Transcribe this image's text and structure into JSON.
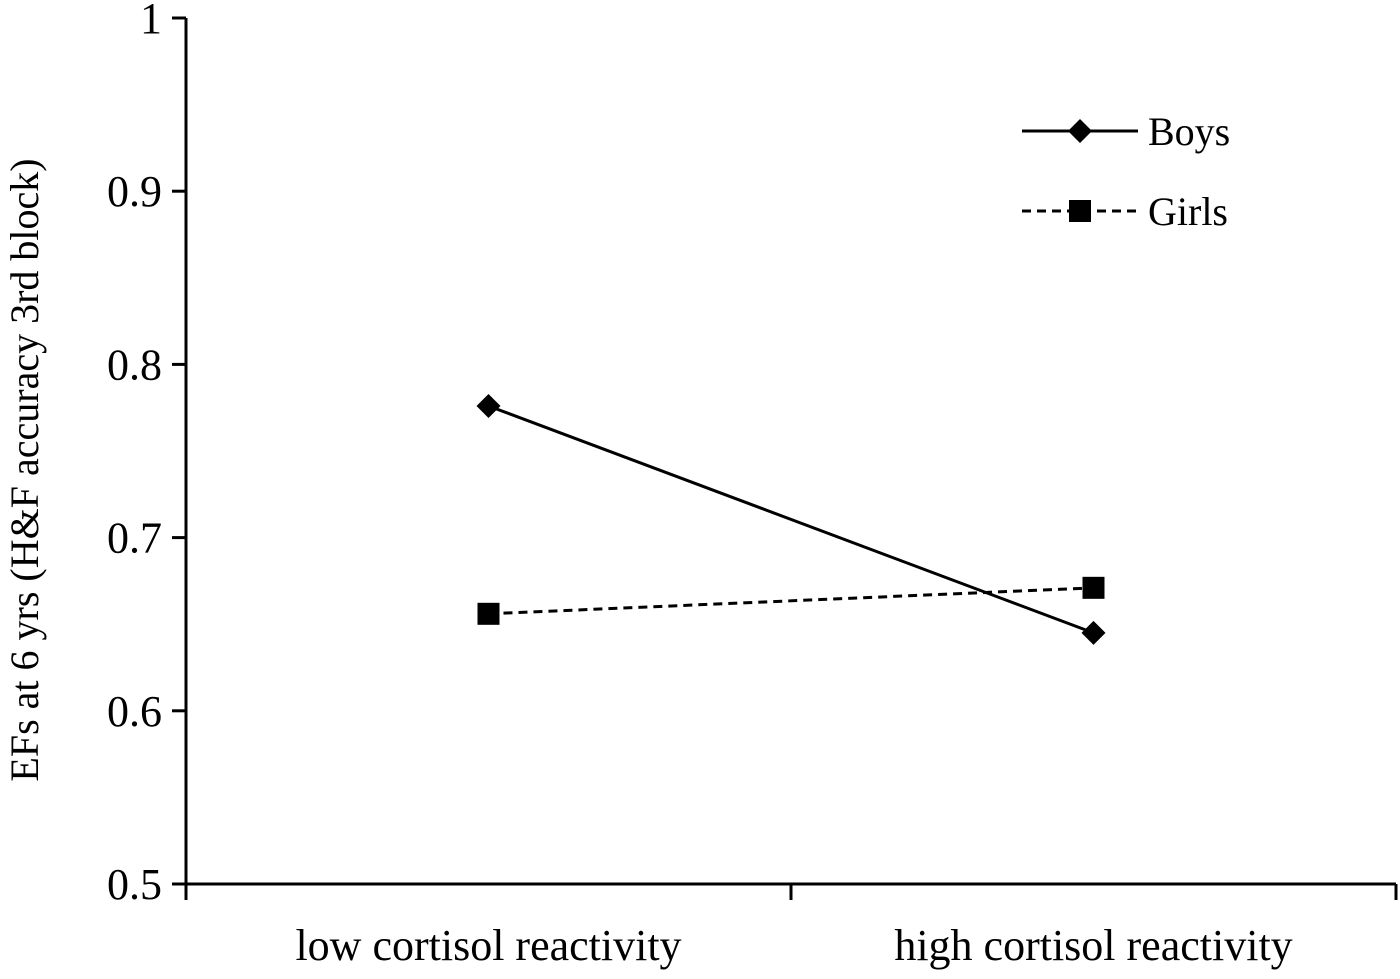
{
  "chart_data": {
    "type": "line",
    "title": "",
    "xlabel": "",
    "ylabel": "EFs at 6 yrs (H&F accuracy 3rd block)",
    "categories": [
      "low cortisol reactivity",
      "high cortisol reactivity"
    ],
    "ylim": [
      0.5,
      1
    ],
    "yticks": [
      {
        "value": 0.5,
        "label": "0.5"
      },
      {
        "value": 0.6,
        "label": "0.6"
      },
      {
        "value": 0.7,
        "label": "0.7"
      },
      {
        "value": 0.8,
        "label": "0.8"
      },
      {
        "value": 0.9,
        "label": "0.9"
      },
      {
        "value": 1.0,
        "label": "1"
      }
    ],
    "grid": false,
    "legend_position": "top-right",
    "series": [
      {
        "name": "Boys",
        "values": [
          0.776,
          0.645
        ],
        "line_style": "solid",
        "marker": "diamond",
        "color": "#000000"
      },
      {
        "name": "Girls",
        "values": [
          0.656,
          0.671
        ],
        "line_style": "dashed",
        "marker": "square",
        "color": "#000000"
      }
    ]
  }
}
